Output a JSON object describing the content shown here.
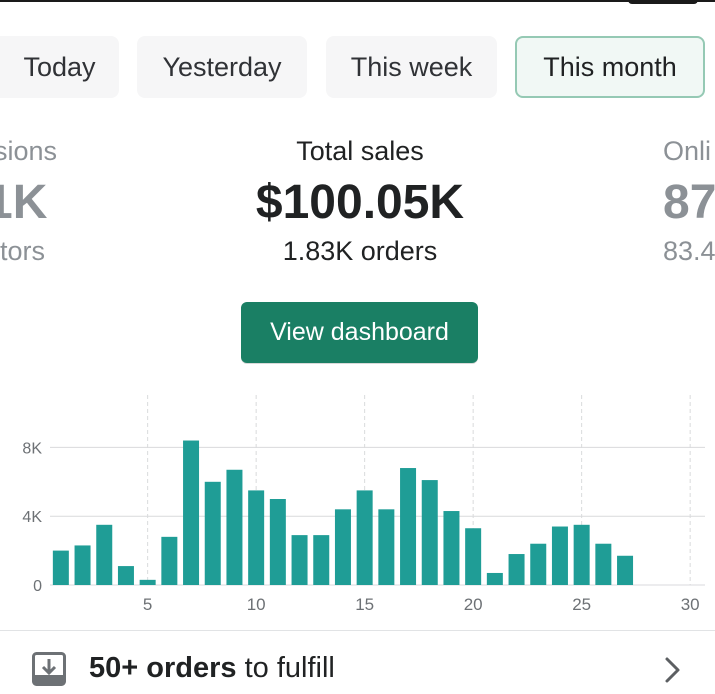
{
  "tabs": [
    {
      "label": "Today",
      "active": false
    },
    {
      "label": "Yesterday",
      "active": false
    },
    {
      "label": "This week",
      "active": false
    },
    {
      "label": "This month",
      "active": true
    }
  ],
  "metrics": {
    "left": {
      "label": "sions",
      "value": "1K",
      "sub": "itors"
    },
    "center": {
      "label": "Total sales",
      "value": "$100.05K",
      "sub": "1.83K orders"
    },
    "right": {
      "label": "Onli",
      "value": "87",
      "sub": "83.4"
    }
  },
  "dashboard_button": {
    "label": "View dashboard"
  },
  "chart_data": {
    "type": "bar",
    "x": [
      1,
      2,
      3,
      4,
      5,
      6,
      7,
      8,
      9,
      10,
      11,
      12,
      13,
      14,
      15,
      16,
      17,
      18,
      19,
      20,
      21,
      22,
      23,
      24,
      25,
      26,
      27,
      28,
      29,
      30
    ],
    "values": [
      2.0,
      2.3,
      3.5,
      1.1,
      0.3,
      2.8,
      8.4,
      6.0,
      6.7,
      5.5,
      5.0,
      2.9,
      2.9,
      4.4,
      5.5,
      4.4,
      6.8,
      6.1,
      4.3,
      3.3,
      0.7,
      1.8,
      2.4,
      3.4,
      3.5,
      2.4,
      1.7,
      0,
      0,
      0
    ],
    "xticks": [
      "5",
      "10",
      "15",
      "20",
      "25",
      "30"
    ],
    "yticks": [
      "0",
      "4K",
      "8K"
    ],
    "ylim": [
      0,
      10
    ],
    "bar_color": "#1f9d96",
    "grid": true
  },
  "fulfill": {
    "count_label": "50+ orders",
    "suffix": " to fulfill"
  },
  "colors": {
    "accent": "#1a7f64",
    "bar": "#1f9d96"
  },
  "icons": {
    "fulfill": "download-tray-icon",
    "chevron": "chevron-right-icon"
  }
}
